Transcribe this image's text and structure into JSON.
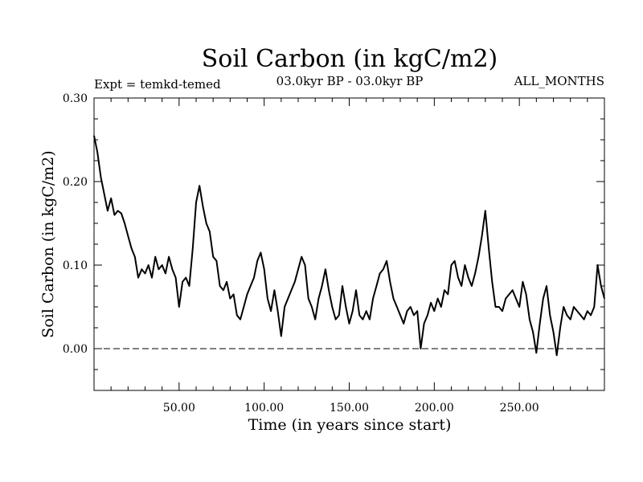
{
  "chart_data": {
    "type": "line",
    "title": "Soil Carbon (in kgC/m2)",
    "subtitle_left": "Expt = temkd-temed",
    "subtitle_center": "03.0kyr BP - 03.0kyr BP",
    "subtitle_right": "ALL_MONTHS",
    "xlabel": "Time (in years since start)",
    "ylabel": "Soil Carbon (in kgC/m2)",
    "xlim": [
      0,
      300
    ],
    "ylim": [
      -0.05,
      0.3
    ],
    "x_ticks": [
      50,
      100,
      150,
      200,
      250
    ],
    "x_tick_labels": [
      "50.00",
      "100.00",
      "150.00",
      "200.00",
      "250.00"
    ],
    "y_ticks": [
      0.0,
      0.1,
      0.2,
      0.3
    ],
    "y_tick_labels": [
      "0.00",
      "0.10",
      "0.20",
      "0.30"
    ],
    "reference_line": {
      "y": 0.0,
      "style": "dashed"
    },
    "series": [
      {
        "name": "Soil Carbon",
        "x": [
          0,
          2,
          4,
          6,
          8,
          10,
          12,
          14,
          16,
          18,
          20,
          22,
          24,
          26,
          28,
          30,
          32,
          34,
          36,
          38,
          40,
          42,
          44,
          46,
          48,
          50,
          52,
          54,
          56,
          58,
          60,
          62,
          64,
          66,
          68,
          70,
          72,
          74,
          76,
          78,
          80,
          82,
          84,
          86,
          88,
          90,
          92,
          94,
          96,
          98,
          100,
          102,
          104,
          106,
          108,
          110,
          112,
          114,
          116,
          118,
          120,
          122,
          124,
          126,
          128,
          130,
          132,
          134,
          136,
          138,
          140,
          142,
          144,
          146,
          148,
          150,
          152,
          154,
          156,
          158,
          160,
          162,
          164,
          166,
          168,
          170,
          172,
          174,
          176,
          178,
          180,
          182,
          184,
          186,
          188,
          190,
          192,
          194,
          196,
          198,
          200,
          202,
          204,
          206,
          208,
          210,
          212,
          214,
          216,
          218,
          220,
          222,
          224,
          226,
          228,
          230,
          232,
          234,
          236,
          238,
          240,
          242,
          244,
          246,
          248,
          250,
          252,
          254,
          256,
          258,
          260,
          262,
          264,
          266,
          268,
          270,
          272,
          274,
          276,
          278,
          280,
          282,
          284,
          286,
          288,
          290,
          292,
          294,
          296,
          298,
          300
        ],
        "values": [
          0.255,
          0.235,
          0.205,
          0.185,
          0.165,
          0.18,
          0.16,
          0.165,
          0.162,
          0.15,
          0.135,
          0.12,
          0.11,
          0.085,
          0.095,
          0.09,
          0.1,
          0.085,
          0.11,
          0.095,
          0.1,
          0.09,
          0.11,
          0.095,
          0.085,
          0.05,
          0.08,
          0.085,
          0.075,
          0.12,
          0.175,
          0.195,
          0.17,
          0.15,
          0.14,
          0.11,
          0.105,
          0.075,
          0.07,
          0.08,
          0.06,
          0.065,
          0.04,
          0.035,
          0.05,
          0.065,
          0.075,
          0.085,
          0.105,
          0.115,
          0.095,
          0.06,
          0.045,
          0.07,
          0.045,
          0.015,
          0.05,
          0.06,
          0.07,
          0.08,
          0.095,
          0.11,
          0.1,
          0.06,
          0.05,
          0.035,
          0.06,
          0.075,
          0.095,
          0.07,
          0.05,
          0.035,
          0.04,
          0.075,
          0.05,
          0.03,
          0.045,
          0.07,
          0.04,
          0.035,
          0.045,
          0.035,
          0.06,
          0.075,
          0.09,
          0.095,
          0.105,
          0.08,
          0.06,
          0.05,
          0.04,
          0.03,
          0.045,
          0.05,
          0.04,
          0.045,
          0.0,
          0.03,
          0.04,
          0.055,
          0.045,
          0.06,
          0.05,
          0.07,
          0.065,
          0.1,
          0.105,
          0.085,
          0.075,
          0.1,
          0.085,
          0.075,
          0.09,
          0.11,
          0.135,
          0.165,
          0.12,
          0.08,
          0.05,
          0.05,
          0.045,
          0.06,
          0.065,
          0.07,
          0.06,
          0.05,
          0.08,
          0.065,
          0.035,
          0.02,
          -0.005,
          0.03,
          0.06,
          0.075,
          0.04,
          0.02,
          -0.008,
          0.025,
          0.05,
          0.04,
          0.035,
          0.05,
          0.045,
          0.04,
          0.035,
          0.045,
          0.04,
          0.05,
          0.1,
          0.075,
          0.06
        ]
      }
    ]
  }
}
